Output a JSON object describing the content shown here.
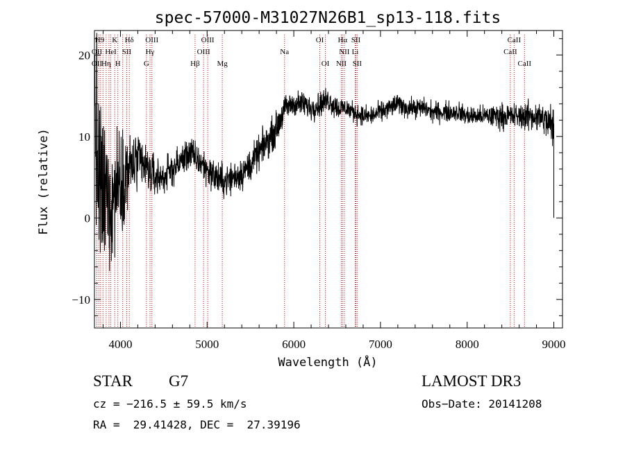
{
  "chart_data": {
    "type": "line",
    "title": "spec-57000-M31027N26B1_sp13-118.fits",
    "xlabel": "Wavelength (Å)",
    "ylabel": "Flux (relative)",
    "xlim": [
      3700,
      9100
    ],
    "ylim": [
      -13.5,
      23
    ],
    "xticks": [
      4000,
      5000,
      6000,
      7000,
      8000,
      9000
    ],
    "xtick_labels": [
      "4000",
      "5000",
      "6000",
      "7000",
      "8000",
      "9000"
    ],
    "yticks": [
      -10,
      0,
      10,
      20
    ],
    "ytick_labels": [
      "−10",
      "0",
      "10",
      "20"
    ],
    "spectrum_anchors": {
      "x": [
        3700,
        3750,
        3800,
        3850,
        3900,
        3950,
        4000,
        4100,
        4200,
        4300,
        4400,
        4500,
        4600,
        4700,
        4800,
        4900,
        5000,
        5100,
        5200,
        5300,
        5400,
        5500,
        5600,
        5700,
        5800,
        5900,
        6000,
        6100,
        6200,
        6300,
        6400,
        6500,
        6600,
        6700,
        6800,
        6900,
        7000,
        7100,
        7200,
        7300,
        7400,
        7500,
        7600,
        7700,
        7800,
        7900,
        8000,
        8100,
        8200,
        8300,
        8400,
        8500,
        8600,
        8700,
        8800,
        8900,
        9000
      ],
      "y": [
        14,
        4,
        2,
        3,
        2,
        4,
        5,
        6,
        7,
        6,
        5,
        5,
        6,
        7,
        8,
        7,
        6,
        5,
        4.5,
        5,
        5.5,
        6.5,
        8,
        9.5,
        11,
        13.5,
        14,
        14,
        13.5,
        14,
        14.5,
        13.5,
        13.5,
        13,
        12.5,
        12.5,
        13,
        13.5,
        14,
        13.5,
        13.5,
        13.5,
        13,
        13,
        13,
        13,
        12.5,
        12.5,
        12.5,
        12.5,
        12.5,
        12.5,
        12.5,
        12.5,
        12.5,
        12,
        11
      ],
      "noise": [
        14,
        12,
        10,
        9,
        8,
        7,
        6,
        4.5,
        3.5,
        3,
        2.5,
        2,
        2,
        2,
        2,
        2,
        2,
        2,
        2,
        2,
        2,
        2,
        2,
        2,
        2,
        1.5,
        1.5,
        1.5,
        1.5,
        1.5,
        1.5,
        1.5,
        1.2,
        1.2,
        1.2,
        1.2,
        1.2,
        1.2,
        1.2,
        1.2,
        1.2,
        1.2,
        1.2,
        1.2,
        1.2,
        1.2,
        1.2,
        1.2,
        1.2,
        1.5,
        1.5,
        1.5,
        1.5,
        1.8,
        1.8,
        2,
        3
      ]
    },
    "line_marker_wavelengths": [
      3728,
      3750,
      3771,
      3798,
      3835,
      3868,
      3889,
      3934,
      3970,
      4026,
      4072,
      4102,
      4300,
      4341,
      4363,
      4861,
      4959,
      5007,
      5175,
      5893,
      6300,
      6364,
      6548,
      6563,
      6583,
      6708,
      6716,
      6731,
      8498,
      8542,
      8662
    ],
    "line_labels": [
      {
        "text": "H9",
        "row": 1,
        "wavelength": 3760
      },
      {
        "text": "K",
        "row": 1,
        "wavelength": 3934
      },
      {
        "text": "Hδ",
        "row": 1,
        "wavelength": 4102
      },
      {
        "text": "OIII",
        "row": 1,
        "wavelength": 4363
      },
      {
        "text": "OIII",
        "row": 1,
        "wavelength": 5007
      },
      {
        "text": "OI",
        "row": 1,
        "wavelength": 6300
      },
      {
        "text": "Hα",
        "row": 1,
        "wavelength": 6563
      },
      {
        "text": "SII",
        "row": 1,
        "wavelength": 6716
      },
      {
        "text": "CaII",
        "row": 1,
        "wavelength": 8542
      },
      {
        "text": "OII",
        "row": 2,
        "wavelength": 3728
      },
      {
        "text": "HeI",
        "row": 2,
        "wavelength": 3889
      },
      {
        "text": "SII",
        "row": 2,
        "wavelength": 4072
      },
      {
        "text": "Hγ",
        "row": 2,
        "wavelength": 4341
      },
      {
        "text": "OIII",
        "row": 2,
        "wavelength": 4959
      },
      {
        "text": "Na",
        "row": 2,
        "wavelength": 5893
      },
      {
        "text": "NII",
        "row": 2,
        "wavelength": 6583
      },
      {
        "text": "Li",
        "row": 2,
        "wavelength": 6708
      },
      {
        "text": "CaII",
        "row": 2,
        "wavelength": 8498
      },
      {
        "text": "OII",
        "row": 3,
        "wavelength": 3728
      },
      {
        "text": "Hη",
        "row": 3,
        "wavelength": 3835
      },
      {
        "text": "H",
        "row": 3,
        "wavelength": 3970
      },
      {
        "text": "G",
        "row": 3,
        "wavelength": 4300
      },
      {
        "text": "Hβ",
        "row": 3,
        "wavelength": 4861
      },
      {
        "text": "Mg",
        "row": 3,
        "wavelength": 5175
      },
      {
        "text": "OI",
        "row": 3,
        "wavelength": 6364
      },
      {
        "text": "NII",
        "row": 3,
        "wavelength": 6548
      },
      {
        "text": "SII",
        "row": 3,
        "wavelength": 6731
      },
      {
        "text": "CaII",
        "row": 3,
        "wavelength": 8662
      }
    ],
    "colors": {
      "spectrum": "#000000",
      "line_markers": "#cc0000",
      "axes": "#000000"
    }
  },
  "info": {
    "class": "STAR",
    "subclass": "G7",
    "survey": "LAMOST DR3",
    "velocity": "cz = −216.5 ± 59.5 km/s",
    "obs_date": "Obs−Date: 20141208",
    "coords": "RA =  29.41428, DEC =  27.39196"
  }
}
